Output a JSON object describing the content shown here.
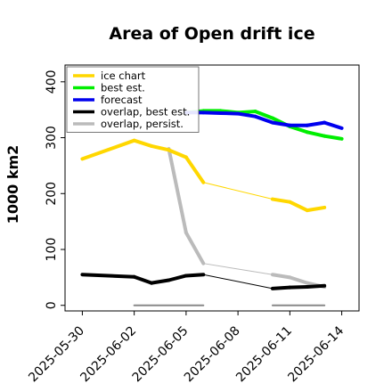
{
  "chart_data": {
    "type": "line",
    "title": "Area of Open drift ice",
    "xlabel": "",
    "ylabel": "1000 km2",
    "xlim": [
      "2025-05-29",
      "2025-06-15"
    ],
    "ylim": [
      -10,
      430
    ],
    "yticks": [
      0,
      100,
      200,
      300,
      400
    ],
    "xticks": [
      "2025-05-30",
      "2025-06-02",
      "2025-06-05",
      "2025-06-08",
      "2025-06-11",
      "2025-06-14"
    ],
    "highlight_tick": "2025-06-05",
    "highlight_color": "#228B22",
    "legend_position": "upper-left",
    "series": [
      {
        "name": "ice chart",
        "color": "#FFD700",
        "points": [
          {
            "x": "2025-05-30",
            "y": 262,
            "w": 1
          },
          {
            "x": "2025-06-02",
            "y": 295,
            "w": 4
          },
          {
            "x": "2025-06-03",
            "y": 285,
            "w": 4
          },
          {
            "x": "2025-06-04",
            "y": 278,
            "w": 4
          },
          {
            "x": "2025-06-05",
            "y": 265,
            "w": 4
          },
          {
            "x": "2025-06-06",
            "y": 220,
            "w": 4
          },
          {
            "x": "2025-06-10",
            "y": 190,
            "w": 1
          },
          {
            "x": "2025-06-11",
            "y": 185,
            "w": 4
          },
          {
            "x": "2025-06-12",
            "y": 170,
            "w": 4
          },
          {
            "x": "2025-06-13",
            "y": 175,
            "w": 4
          }
        ]
      },
      {
        "name": "best est.",
        "color": "#00EE00",
        "points": [
          {
            "x": "2025-06-05",
            "y": 345,
            "w": 4
          },
          {
            "x": "2025-06-06",
            "y": 348,
            "w": 4
          },
          {
            "x": "2025-06-07",
            "y": 348,
            "w": 4
          },
          {
            "x": "2025-06-08",
            "y": 345,
            "w": 4
          },
          {
            "x": "2025-06-09",
            "y": 347,
            "w": 4
          },
          {
            "x": "2025-06-10",
            "y": 335,
            "w": 4
          },
          {
            "x": "2025-06-11",
            "y": 320,
            "w": 4
          },
          {
            "x": "2025-06-12",
            "y": 310,
            "w": 4
          },
          {
            "x": "2025-06-13",
            "y": 303,
            "w": 4
          },
          {
            "x": "2025-06-14",
            "y": 298,
            "w": 4
          }
        ]
      },
      {
        "name": "forecast",
        "color": "#0000EE",
        "points": [
          {
            "x": "2025-06-05",
            "y": 345,
            "w": 4
          },
          {
            "x": "2025-06-06",
            "y": 345,
            "w": 4
          },
          {
            "x": "2025-06-07",
            "y": 344,
            "w": 4
          },
          {
            "x": "2025-06-08",
            "y": 343,
            "w": 4
          },
          {
            "x": "2025-06-09",
            "y": 338,
            "w": 4
          },
          {
            "x": "2025-06-10",
            "y": 327,
            "w": 4
          },
          {
            "x": "2025-06-11",
            "y": 322,
            "w": 4
          },
          {
            "x": "2025-06-12",
            "y": 322,
            "w": 4
          },
          {
            "x": "2025-06-13",
            "y": 327,
            "w": 4
          },
          {
            "x": "2025-06-14",
            "y": 317,
            "w": 4
          }
        ]
      },
      {
        "name": "overlap, best est.",
        "color": "#000000",
        "points": [
          {
            "x": "2025-05-30",
            "y": 55,
            "w": 1
          },
          {
            "x": "2025-06-02",
            "y": 51,
            "w": 4
          },
          {
            "x": "2025-06-03",
            "y": 40,
            "w": 4
          },
          {
            "x": "2025-06-04",
            "y": 45,
            "w": 4
          },
          {
            "x": "2025-06-05",
            "y": 53,
            "w": 4
          },
          {
            "x": "2025-06-06",
            "y": 55,
            "w": 4
          },
          {
            "x": "2025-06-10",
            "y": 30,
            "w": 1
          },
          {
            "x": "2025-06-11",
            "y": 32,
            "w": 4
          },
          {
            "x": "2025-06-12",
            "y": 33,
            "w": 4
          },
          {
            "x": "2025-06-13",
            "y": 35,
            "w": 4
          }
        ]
      },
      {
        "name": "overlap, persist.",
        "color": "#BBBBBB",
        "points": [
          {
            "x": "2025-06-04",
            "y": 280,
            "w": 4
          },
          {
            "x": "2025-06-05",
            "y": 130,
            "w": 4
          },
          {
            "x": "2025-06-06",
            "y": 75,
            "w": 4
          },
          {
            "x": "2025-06-10",
            "y": 55,
            "w": 1
          },
          {
            "x": "2025-06-11",
            "y": 50,
            "w": 4
          },
          {
            "x": "2025-06-12",
            "y": 40,
            "w": 4
          },
          {
            "x": "2025-06-13",
            "y": 33,
            "w": 4
          }
        ]
      },
      {
        "name": "",
        "color": "#888888",
        "points": [
          {
            "x": "2025-06-02",
            "y": 0,
            "w": 2
          },
          {
            "x": "2025-06-06",
            "y": 0,
            "w": 2
          }
        ]
      },
      {
        "name": "",
        "color": "#888888",
        "points": [
          {
            "x": "2025-06-10",
            "y": 0,
            "w": 2
          },
          {
            "x": "2025-06-13",
            "y": 0,
            "w": 2
          }
        ]
      }
    ]
  }
}
